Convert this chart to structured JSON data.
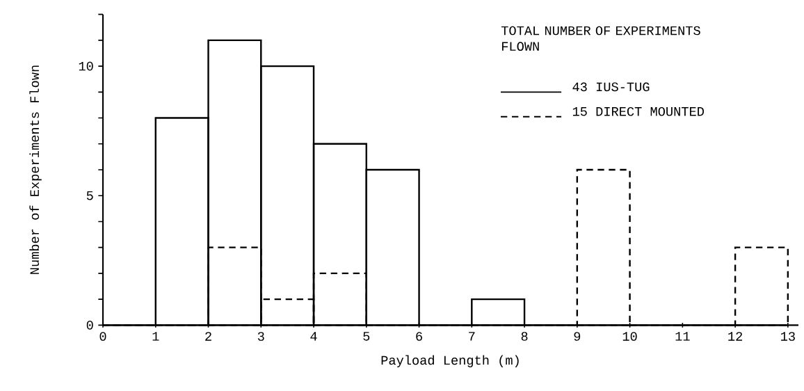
{
  "chart_data": {
    "type": "histogram",
    "xlabel": "Payload Length (m)",
    "ylabel": "Number of Experiments Flown",
    "legend_title": "TOTAL NUMBER OF EXPERIMENTS FLOWN",
    "bins": [
      0,
      1,
      2,
      3,
      4,
      5,
      6,
      7,
      8,
      9,
      10,
      11,
      12,
      13
    ],
    "series": [
      {
        "name": "43 IUS-TUG",
        "color": "#000000",
        "line_style": "solid",
        "values": [
          0,
          8,
          11,
          10,
          7,
          6,
          0,
          1,
          0,
          0,
          0,
          0,
          0
        ]
      },
      {
        "name": "15 DIRECT MOUNTED",
        "color": "#000000",
        "line_style": "dashed",
        "values": [
          0,
          0,
          3,
          1,
          2,
          0,
          0,
          0,
          0,
          6,
          0,
          0,
          3
        ]
      }
    ],
    "xlim": [
      0,
      13.2
    ],
    "ylim": [
      0,
      12
    ],
    "xticks": [
      0,
      1,
      2,
      3,
      4,
      5,
      6,
      7,
      8,
      9,
      10,
      11,
      12,
      13
    ],
    "yticks": [
      0,
      {
        "value": 1,
        "label": null
      },
      {
        "value": 2,
        "label": null
      },
      {
        "value": 3,
        "label": null
      },
      {
        "value": 4,
        "label": null
      },
      5,
      {
        "value": 6,
        "label": null
      },
      {
        "value": 7,
        "label": null
      },
      {
        "value": 8,
        "label": null
      },
      {
        "value": 9,
        "label": null
      },
      10,
      {
        "value": 11,
        "label": null
      },
      {
        "value": 12,
        "label": null
      }
    ],
    "grid": false,
    "legend": "top right"
  }
}
